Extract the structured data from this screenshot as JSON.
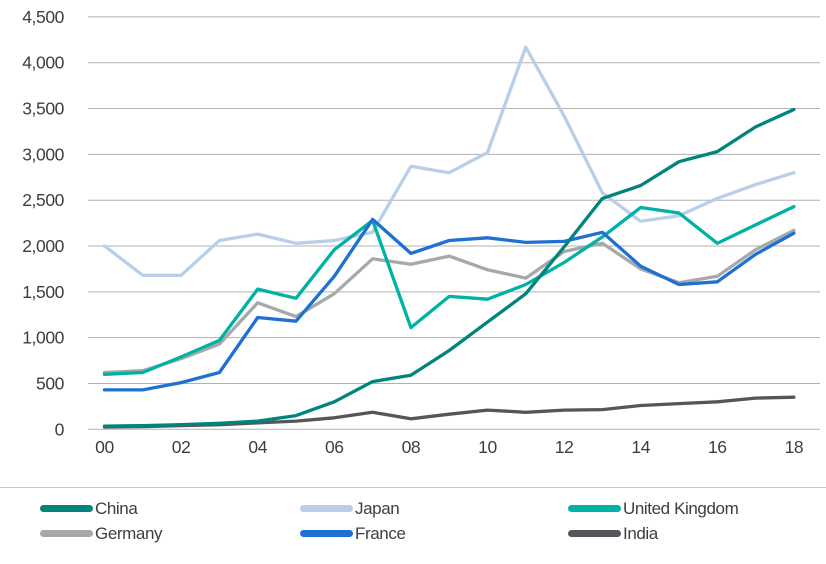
{
  "chart_data": {
    "type": "line",
    "title": "",
    "xlabel": "",
    "ylabel": "",
    "ylim": [
      0,
      4500
    ],
    "grid": true,
    "legend_position": "bottom",
    "years": [
      2000,
      2001,
      2002,
      2003,
      2004,
      2005,
      2006,
      2007,
      2008,
      2009,
      2010,
      2011,
      2012,
      2013,
      2014,
      2015,
      2016,
      2017,
      2018
    ],
    "x_ticks": [
      {
        "index": 0,
        "label": "00"
      },
      {
        "index": 2,
        "label": "02"
      },
      {
        "index": 4,
        "label": "04"
      },
      {
        "index": 6,
        "label": "06"
      },
      {
        "index": 8,
        "label": "08"
      },
      {
        "index": 10,
        "label": "10"
      },
      {
        "index": 12,
        "label": "12"
      },
      {
        "index": 14,
        "label": "14"
      },
      {
        "index": 16,
        "label": "16"
      },
      {
        "index": 18,
        "label": "18"
      }
    ],
    "y_ticks": [
      {
        "value": 0,
        "label": "0"
      },
      {
        "value": 500,
        "label": "500"
      },
      {
        "value": 1000,
        "label": "1,000"
      },
      {
        "value": 1500,
        "label": "1,500"
      },
      {
        "value": 2000,
        "label": "2,000"
      },
      {
        "value": 2500,
        "label": "2,500"
      },
      {
        "value": 3000,
        "label": "3,000"
      },
      {
        "value": 3500,
        "label": "3,500"
      },
      {
        "value": 4000,
        "label": "4,000"
      },
      {
        "value": 4500,
        "label": "4,500"
      }
    ],
    "series": [
      {
        "name": "Japan",
        "color": "#b9cfe8",
        "values": [
          2000,
          1680,
          1680,
          2060,
          2130,
          2030,
          2060,
          2150,
          2870,
          2800,
          3020,
          4170,
          3420,
          2580,
          2270,
          2330,
          2520,
          2670,
          2800
        ]
      },
      {
        "name": "Germany",
        "color": "#a7a8aa",
        "values": [
          620,
          640,
          770,
          930,
          1380,
          1230,
          1480,
          1860,
          1800,
          1890,
          1740,
          1650,
          1940,
          2030,
          1750,
          1600,
          1670,
          1960,
          2170
        ]
      },
      {
        "name": "United Kingdom",
        "color": "#00b2a4",
        "values": [
          600,
          620,
          790,
          970,
          1530,
          1430,
          1960,
          2280,
          1110,
          1450,
          1420,
          1580,
          1820,
          2100,
          2420,
          2360,
          2030,
          2230,
          2430
        ]
      },
      {
        "name": "France",
        "color": "#1e70d2",
        "values": [
          430,
          430,
          510,
          620,
          1220,
          1180,
          1670,
          2290,
          1920,
          2060,
          2090,
          2040,
          2050,
          2150,
          1780,
          1580,
          1610,
          1910,
          2140
        ]
      },
      {
        "name": "India",
        "color": "#53565a",
        "values": [
          25,
          30,
          40,
          50,
          70,
          90,
          125,
          185,
          115,
          165,
          210,
          185,
          210,
          215,
          260,
          280,
          300,
          340,
          350
        ]
      },
      {
        "name": "China",
        "color": "#00847b",
        "values": [
          35,
          40,
          50,
          65,
          90,
          150,
          300,
          520,
          590,
          860,
          1170,
          1480,
          1990,
          2520,
          2660,
          2920,
          3030,
          3300,
          3490
        ]
      }
    ],
    "legend_columns": [
      [
        "China",
        "Germany"
      ],
      [
        "Japan",
        "France"
      ],
      [
        "United Kingdom",
        "India"
      ]
    ],
    "colors": {
      "grid": "#b1b1b1",
      "axis_text": "#3a3f44",
      "divider": "#c9c9c9"
    }
  }
}
